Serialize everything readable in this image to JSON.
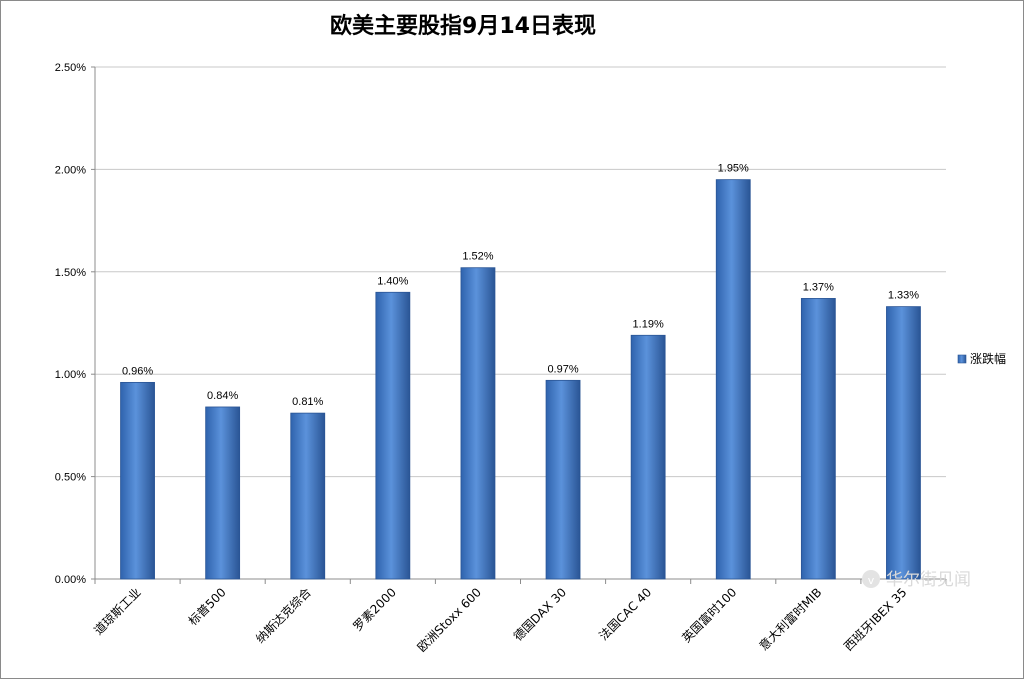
{
  "chart_data": {
    "type": "bar",
    "title": "欧美主要股指9月14日表现",
    "categories": [
      "道琼斯工业",
      "标普500",
      "纳斯达克综合",
      "罗素2000",
      "欧洲Stoxx 600",
      "德国DAX 30",
      "法国CAC 40",
      "英国富时100",
      "意大利富时MIB",
      "西班牙IBEX 35"
    ],
    "series": [
      {
        "name": "涨跌幅",
        "values": [
          0.96,
          0.84,
          0.81,
          1.4,
          1.52,
          0.97,
          1.19,
          1.95,
          1.37,
          1.33
        ],
        "data_labels": [
          "0.96%",
          "0.84%",
          "0.81%",
          "1.40%",
          "1.52%",
          "0.97%",
          "1.19%",
          "1.95%",
          "1.37%",
          "1.33%"
        ]
      }
    ],
    "y_ticks": [
      "0.00%",
      "0.50%",
      "1.00%",
      "1.50%",
      "2.00%",
      "2.50%"
    ],
    "ylim": [
      0,
      2.5
    ],
    "xlabel": "",
    "ylabel": "",
    "grid": true,
    "legend_position": "right",
    "colors": {
      "bar": "#4a7fc8",
      "bar_dark": "#2a5595",
      "grid": "#c8c8c8"
    }
  },
  "watermark": {
    "text": "华尔街见闻",
    "icon": "wallstreetcn-logo-icon"
  }
}
